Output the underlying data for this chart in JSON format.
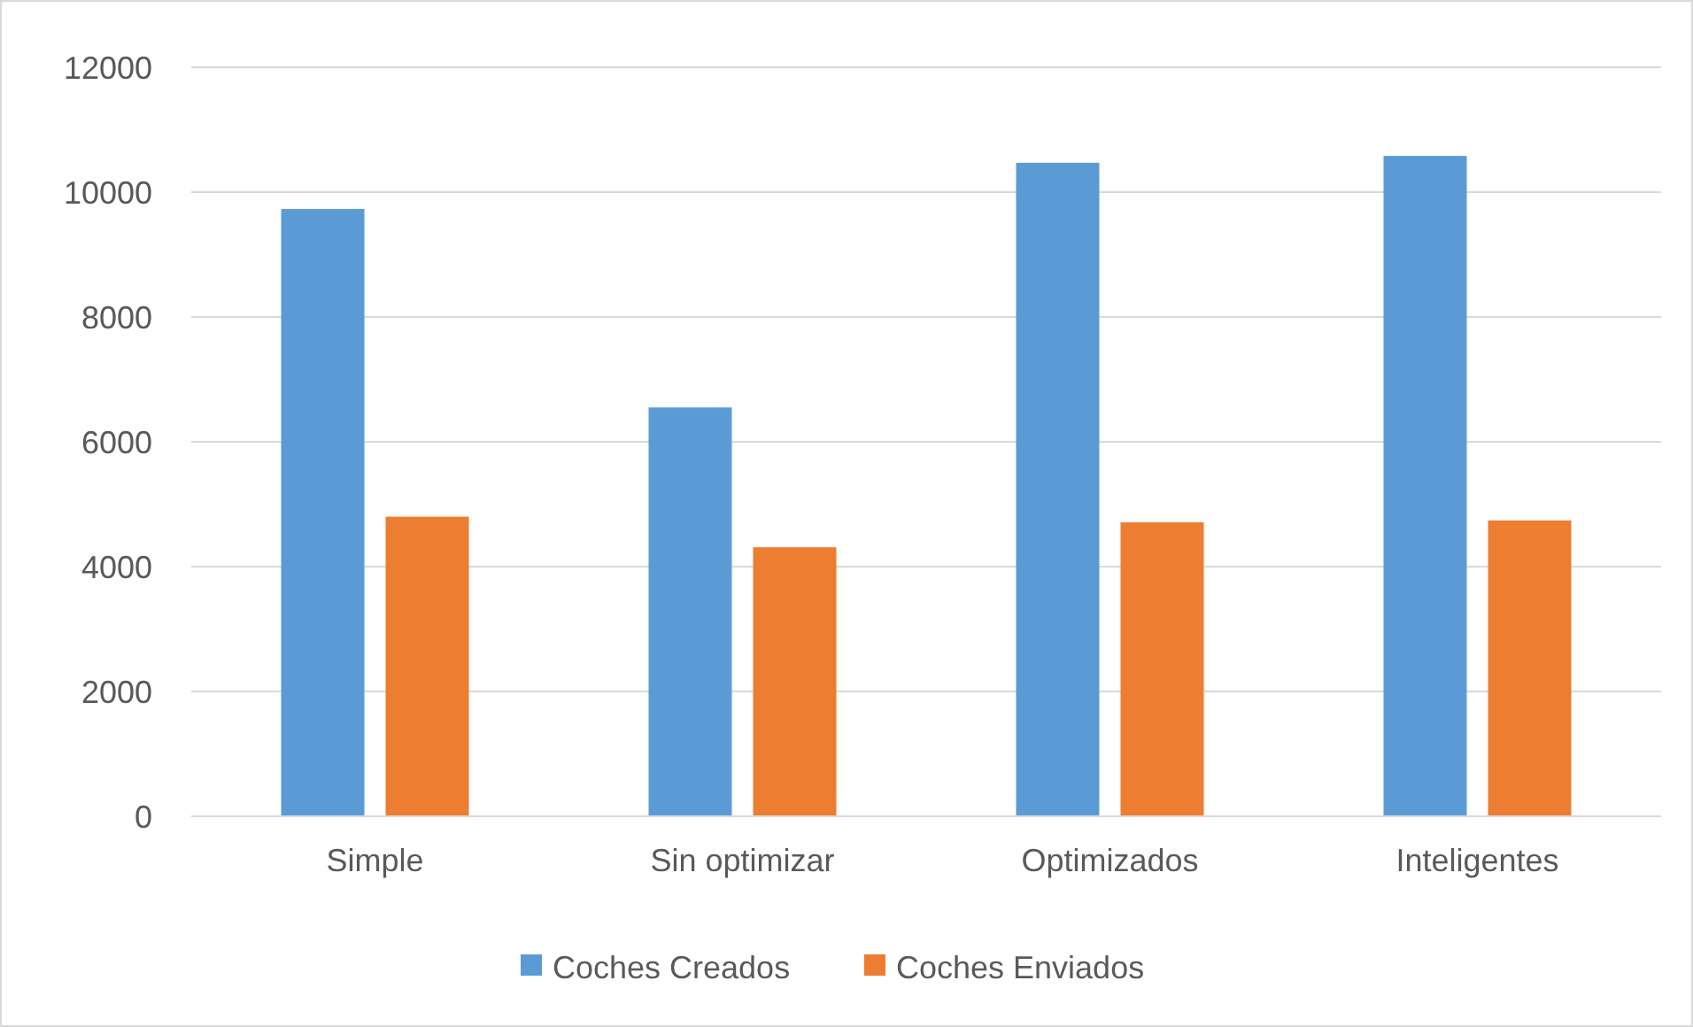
{
  "chart_data": {
    "type": "bar",
    "categories": [
      "Simple",
      "Sin optimizar",
      "Optimizados",
      "Inteligentes"
    ],
    "series": [
      {
        "name": "Coches Creados",
        "color": "#5b9bd5",
        "values": [
          9730,
          6550,
          10470,
          10580
        ]
      },
      {
        "name": "Coches Enviados",
        "color": "#ed7d31",
        "values": [
          4800,
          4310,
          4710,
          4740
        ]
      }
    ],
    "ylim": [
      0,
      12000
    ],
    "yticks": [
      0,
      2000,
      4000,
      6000,
      8000,
      10000,
      12000
    ],
    "grid": "y",
    "legend": "bottom"
  }
}
